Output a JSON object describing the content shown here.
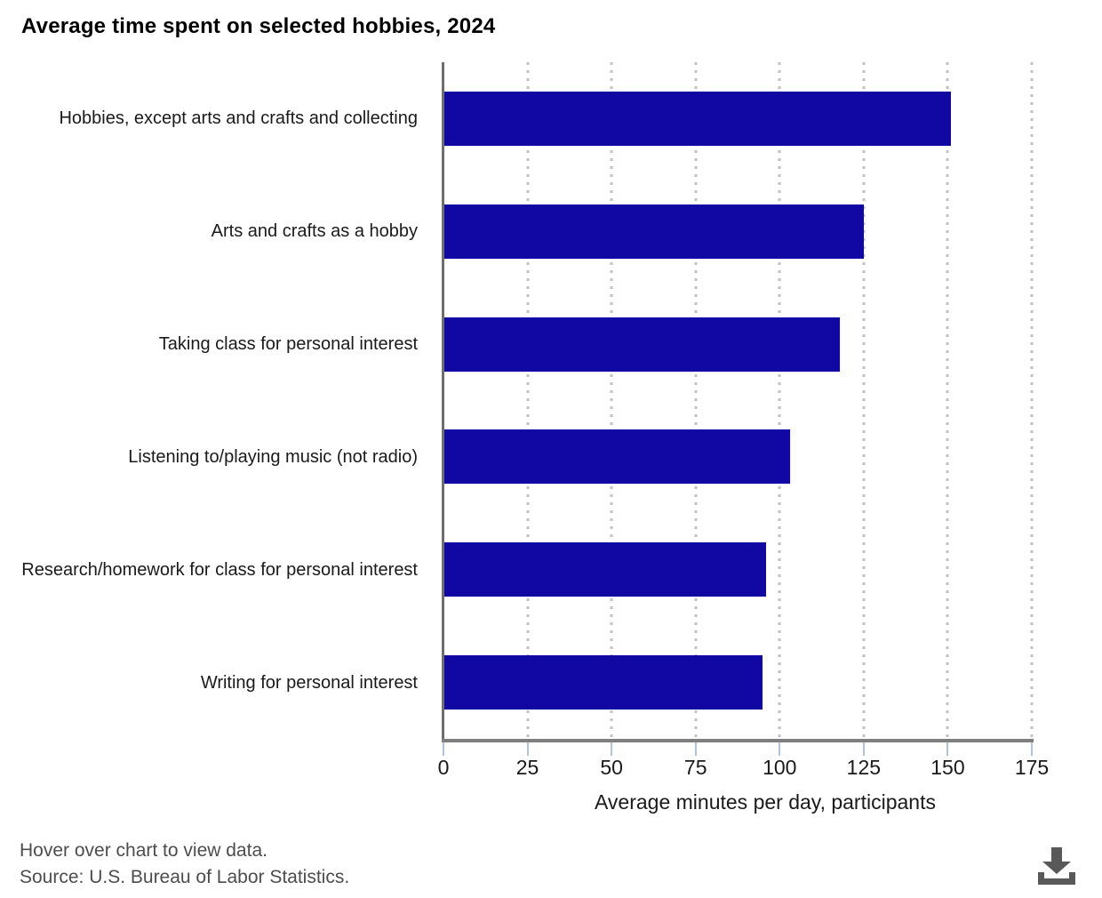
{
  "title": "Average time spent on selected hobbies, 2024",
  "chart_data": {
    "type": "bar",
    "orientation": "horizontal",
    "title": "Average time spent on selected hobbies, 2024",
    "categories": [
      "Hobbies, except arts and crafts and collecting",
      "Arts and crafts as a hobby",
      "Taking class for personal interest",
      "Listening to/playing music (not radio)",
      "Research/homework for class for personal interest",
      "Writing for personal interest"
    ],
    "values": [
      151,
      125,
      118,
      103,
      96,
      95
    ],
    "xlabel": "Average minutes per day, participants",
    "ylabel": "",
    "xlim": [
      0,
      175
    ],
    "xticks": [
      0,
      25,
      50,
      75,
      100,
      125,
      150,
      175
    ],
    "grid": "dotted vertical gridlines at each x tick",
    "legend": "none"
  },
  "colors": {
    "bar": "#1107a3",
    "axis_line": "#7f7f7f",
    "tick_mark": "#afc3e1",
    "gridline": "#c2c2c2",
    "footer_text": "#4d4d4d",
    "download_icon": "#595959"
  },
  "footer": {
    "note": "Hover over chart to view data.",
    "source": "Source: U.S. Bureau of Labor Statistics."
  },
  "icons": {
    "download": "download-icon"
  }
}
